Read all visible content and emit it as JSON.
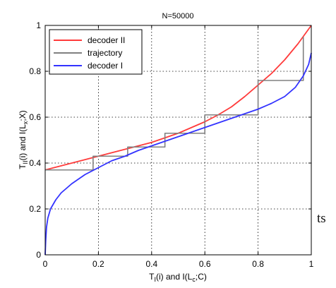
{
  "chart_data": {
    "type": "line",
    "title": "N=50000",
    "xlabel": "T_I(i) and I(L_c;C)",
    "ylabel": "T_II(i) and I(L_x;X)",
    "xlim": [
      0,
      1
    ],
    "ylim": [
      0,
      1
    ],
    "xticks": [
      "0",
      "0.2",
      "0.4",
      "0.6",
      "0.8",
      "1"
    ],
    "yticks": [
      "0",
      "0.2",
      "0.4",
      "0.6",
      "0.8",
      "1"
    ],
    "grid": true,
    "legend_position": "top-left",
    "series": [
      {
        "name": "decoder II",
        "color": "#ff3b3b",
        "x": [
          0,
          0.05,
          0.1,
          0.15,
          0.2,
          0.25,
          0.3,
          0.35,
          0.4,
          0.45,
          0.5,
          0.55,
          0.6,
          0.65,
          0.7,
          0.75,
          0.8,
          0.85,
          0.9,
          0.95,
          1.0
        ],
        "y": [
          0.37,
          0.385,
          0.4,
          0.415,
          0.43,
          0.445,
          0.46,
          0.475,
          0.49,
          0.51,
          0.53,
          0.555,
          0.58,
          0.61,
          0.645,
          0.69,
          0.74,
          0.79,
          0.85,
          0.92,
          1.0
        ]
      },
      {
        "name": "trajectory",
        "color": "#808080",
        "x": [
          0,
          0.18,
          0.18,
          0.31,
          0.31,
          0.45,
          0.45,
          0.6,
          0.6,
          0.8,
          0.8,
          0.97,
          0.97
        ],
        "y": [
          0.37,
          0.37,
          0.43,
          0.43,
          0.47,
          0.47,
          0.53,
          0.53,
          0.61,
          0.61,
          0.76,
          0.76,
          0.95
        ]
      },
      {
        "name": "decoder I",
        "color": "#3333ff",
        "x": [
          0.0,
          0.002,
          0.005,
          0.01,
          0.02,
          0.04,
          0.06,
          0.1,
          0.15,
          0.2,
          0.25,
          0.3,
          0.35,
          0.4,
          0.45,
          0.5,
          0.55,
          0.6,
          0.65,
          0.7,
          0.75,
          0.8,
          0.85,
          0.9,
          0.94,
          0.97,
          0.99,
          1.0
        ],
        "y": [
          0.0,
          0.06,
          0.12,
          0.16,
          0.2,
          0.24,
          0.27,
          0.31,
          0.35,
          0.38,
          0.41,
          0.43,
          0.455,
          0.475,
          0.495,
          0.515,
          0.535,
          0.555,
          0.575,
          0.595,
          0.615,
          0.635,
          0.66,
          0.69,
          0.73,
          0.78,
          0.83,
          0.88
        ]
      }
    ]
  },
  "fragment": "ts"
}
